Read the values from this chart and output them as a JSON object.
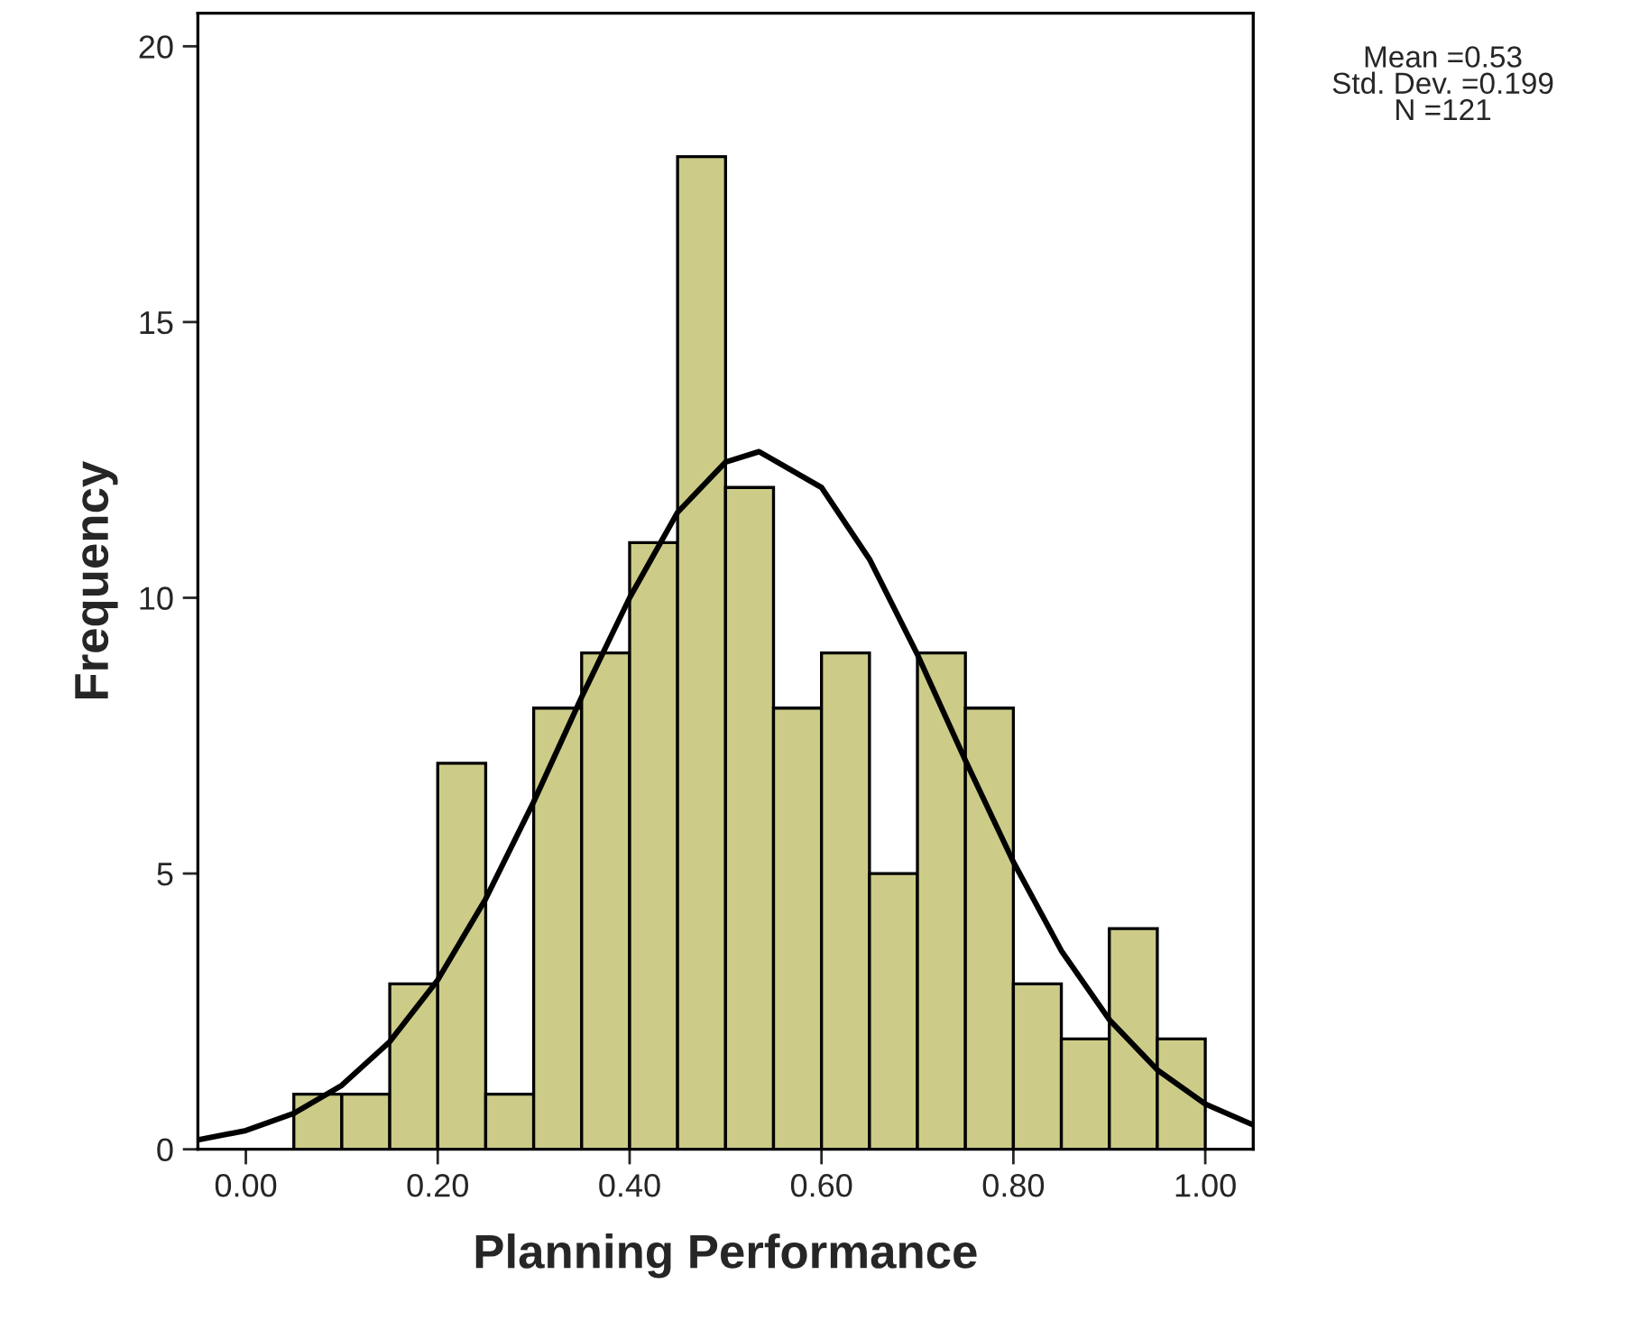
{
  "chart_data": {
    "type": "histogram",
    "xlabel": "Planning Performance",
    "ylabel": "Frequency",
    "bins": [
      0.05,
      0.1,
      0.15,
      0.2,
      0.25,
      0.3,
      0.35,
      0.4,
      0.45,
      0.5,
      0.55,
      0.6,
      0.65,
      0.7,
      0.75,
      0.8,
      0.85,
      0.9,
      0.95,
      1.0
    ],
    "values": [
      1,
      1,
      3,
      7,
      1,
      8,
      9,
      11,
      18,
      12,
      8,
      9,
      5,
      9,
      8,
      3,
      2,
      4,
      2
    ],
    "color": "#cccc88",
    "series": [
      {
        "type": "line",
        "color": "#000000",
        "x": [
          -0.05,
          0.0,
          0.05,
          0.1,
          0.15,
          0.2,
          0.25,
          0.3,
          0.35,
          0.4,
          0.45,
          0.5,
          0.535,
          0.6,
          0.65,
          0.7,
          0.75,
          0.8,
          0.85,
          0.9,
          0.95,
          1.0,
          1.05
        ],
        "values": [
          0.17,
          0.34,
          0.65,
          1.16,
          1.95,
          3.07,
          4.54,
          6.3,
          8.2,
          10.0,
          11.55,
          12.46,
          12.65,
          12.0,
          10.7,
          8.97,
          7.05,
          5.21,
          3.6,
          2.35,
          1.44,
          0.82,
          0.44
        ]
      }
    ],
    "xlim": [
      -0.05,
      1.05
    ],
    "ylim": [
      0,
      20.6
    ],
    "xticks": [
      {
        "value": 0,
        "label": "0.00"
      },
      {
        "value": 0.2,
        "label": "0.20"
      },
      {
        "value": 0.4,
        "label": "0.40"
      },
      {
        "value": 0.6,
        "label": "0.60"
      },
      {
        "value": 0.8,
        "label": "0.80"
      },
      {
        "value": 1.0,
        "label": "1.00"
      }
    ],
    "yticks": [
      0,
      5,
      10,
      15,
      20
    ],
    "annotations": [
      "Mean =0.53",
      "Std. Dev. =0.199",
      "N =121"
    ],
    "grid": false,
    "legend": false
  }
}
